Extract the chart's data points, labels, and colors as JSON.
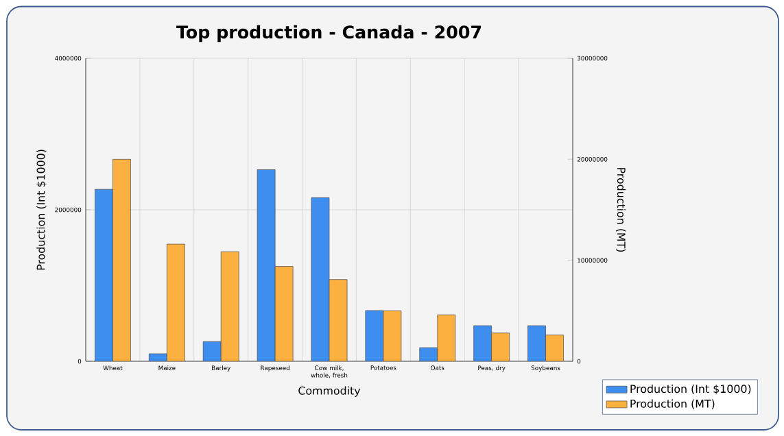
{
  "chart_data": {
    "type": "bar",
    "title": "Top production - Canada - 2007",
    "xlabel": "Commodity",
    "ylabel": "Production (Int $1000)",
    "y2label": "Production (MT)",
    "categories": [
      "Wheat",
      "Maize",
      "Barley",
      "Rapeseed",
      "Cow milk, whole, fresh",
      "Potatoes",
      "Oats",
      "Peas, dry",
      "Soybeans"
    ],
    "series": [
      {
        "name": "Production (Int $1000)",
        "color": "#3e8ef0",
        "values": [
          2270000,
          100000,
          260000,
          2530000,
          2160000,
          670000,
          180000,
          470000,
          470000
        ]
      },
      {
        "name": "Production (MT)",
        "color": "#fbb040",
        "axis": "y2",
        "values": [
          20000000,
          11600000,
          10850000,
          9400000,
          8100000,
          5000000,
          4600000,
          2800000,
          2600000
        ]
      }
    ],
    "ylim": [
      0,
      4000000
    ],
    "yticks": [
      0,
      2000000,
      4000000
    ],
    "y2lim": [
      0,
      30000000
    ],
    "y2ticks": [
      0,
      10000000,
      20000000,
      30000000
    ],
    "grid": true,
    "legend": "bottom right"
  }
}
